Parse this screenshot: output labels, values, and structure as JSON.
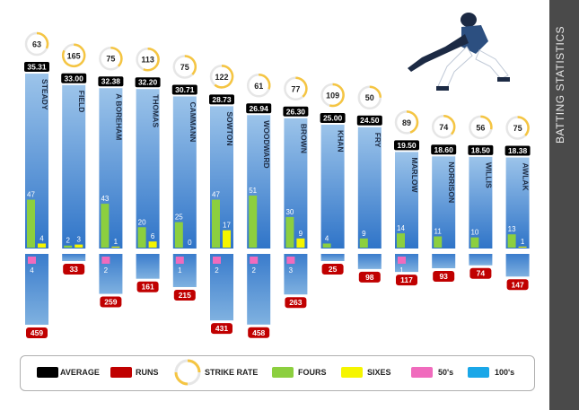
{
  "side_title": "BATTING STATISTICS",
  "legend": [
    {
      "key": "average",
      "label": "AVERAGE",
      "color": "#000000"
    },
    {
      "key": "runs",
      "label": "RUNS",
      "color": "#c00000"
    },
    {
      "key": "strike_rate",
      "label": "STRIKE RATE",
      "color": "#f5c542"
    },
    {
      "key": "fours",
      "label": "FOURS",
      "color": "#8ccf3f"
    },
    {
      "key": "sixes",
      "label": "SIXES",
      "color": "#f5f500"
    },
    {
      "key": "fifties",
      "label": "50's",
      "color": "#f06bbd"
    },
    {
      "key": "hundreds",
      "label": "100's",
      "color": "#1aa7e8"
    }
  ],
  "chart_data": {
    "type": "bar",
    "categories": [
      "STEADY",
      "FIELD",
      "A BOREHAM",
      "THOMAS",
      "CAMMANN",
      "SOWTON",
      "WOODWARD",
      "BROWN",
      "KHAN",
      "FRY",
      "MARLOW",
      "NORRISON",
      "WILLIS",
      "AWLAK"
    ],
    "series": [
      {
        "name": "AVERAGE",
        "values": [
          35.31,
          33.0,
          32.38,
          32.2,
          30.71,
          28.73,
          26.94,
          26.3,
          25.0,
          24.5,
          19.5,
          18.6,
          18.5,
          18.38
        ]
      },
      {
        "name": "RUNS",
        "values": [
          459,
          33,
          259,
          161,
          215,
          431,
          458,
          263,
          25,
          98,
          117,
          93,
          74,
          147
        ]
      },
      {
        "name": "STRIKE RATE",
        "values": [
          63,
          165,
          75,
          113,
          75,
          122,
          61,
          77,
          109,
          50,
          89,
          74,
          56,
          75
        ]
      },
      {
        "name": "FOURS",
        "values": [
          47,
          2,
          43,
          20,
          25,
          47,
          51,
          30,
          4,
          9,
          14,
          11,
          10,
          13
        ]
      },
      {
        "name": "SIXES",
        "values": [
          4,
          3,
          1,
          6,
          0,
          17,
          null,
          9,
          null,
          null,
          null,
          null,
          null,
          1
        ]
      },
      {
        "name": "50's",
        "values": [
          4,
          null,
          2,
          null,
          1,
          2,
          2,
          3,
          null,
          null,
          1,
          null,
          null,
          null
        ]
      },
      {
        "name": "100's",
        "values": [
          null,
          null,
          null,
          null,
          null,
          null,
          null,
          null,
          null,
          null,
          null,
          null,
          null,
          null
        ]
      }
    ],
    "colors": {
      "average": "#000000",
      "runs": "#c00000",
      "ring_track": "#e6e6e6",
      "ring_fill": "#f5c542",
      "bar_top": "#7fb1e0",
      "bar_bottom": "#2f74c8",
      "fours": "#8ccf3f",
      "sixes": "#f5f500",
      "fifties": "#f06bbd"
    },
    "scales": {
      "average_max": 40,
      "fours_max": 60,
      "runs_max": 500,
      "strike_rate_max": 200
    },
    "legend_position": "bottom",
    "grid": false
  }
}
